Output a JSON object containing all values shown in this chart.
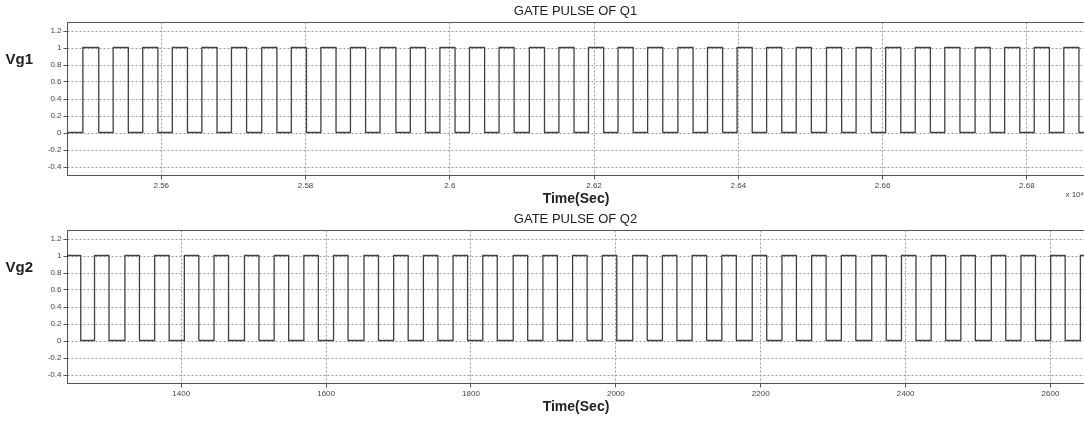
{
  "chart_data": [
    {
      "type": "step",
      "title": "GATE PULSE OF Q1",
      "xlabel": "Time(Sec)",
      "ylabel": "Vg1",
      "annotations": [
        "x 10⁴"
      ],
      "color": "#404040",
      "grid": true,
      "x": [
        2.547,
        2.5492,
        2.5514,
        2.5534,
        2.5555,
        2.5575,
        2.5596,
        2.5616,
        2.5637,
        2.5657,
        2.5678,
        2.5698,
        2.5719,
        2.574,
        2.5761,
        2.5781,
        2.5802,
        2.5822,
        2.5843,
        2.5863,
        2.5884,
        2.5904,
        2.5926,
        2.5946,
        2.5967,
        2.5987,
        2.6008,
        2.6028,
        2.6049,
        2.6069,
        2.609,
        2.6111,
        2.6132,
        2.6152,
        2.6173,
        2.6193,
        2.6214,
        2.6234,
        2.6255,
        2.6275,
        2.6296,
        2.6317,
        2.6338,
        2.6358,
        2.6379,
        2.6399,
        2.642,
        2.644,
        2.6461,
        2.6481,
        2.6502,
        2.6523,
        2.6544,
        2.6564,
        2.6585,
        2.6605,
        2.6626,
        2.6646,
        2.6667,
        2.6687,
        2.6708,
        2.6729,
        2.675,
        2.677,
        2.6791,
        2.6811,
        2.6832,
        2.6852,
        2.6873,
        2.688
      ],
      "values": [
        0,
        1,
        0,
        1,
        0,
        1,
        0,
        1,
        0,
        1,
        0,
        1,
        0,
        1,
        0,
        1,
        0,
        1,
        0,
        1,
        0,
        1,
        0,
        1,
        0,
        1,
        0,
        1,
        0,
        1,
        0,
        1,
        0,
        1,
        0,
        1,
        0,
        1,
        0,
        1,
        0,
        1,
        0,
        1,
        0,
        1,
        0,
        1,
        0,
        1,
        0,
        1,
        0,
        1,
        0,
        1,
        0,
        1,
        0,
        1,
        0,
        1,
        0,
        1,
        0,
        1,
        0,
        1,
        0,
        0
      ],
      "xlim": [
        2.547,
        2.688
      ],
      "xticks": [
        2.56,
        2.58,
        2.6,
        2.62,
        2.64,
        2.66,
        2.68
      ],
      "ylim": [
        -0.5,
        1.3
      ],
      "yticks": [
        -0.4,
        -0.2,
        0,
        0.2,
        0.4,
        0.6,
        0.8,
        1,
        1.2
      ]
    },
    {
      "type": "step",
      "title": "GATE PULSE OF Q2",
      "xlabel": "Time(Sec)",
      "ylabel": "Vg2",
      "color": "#404040",
      "grid": true,
      "x": [
        1243,
        1262,
        1281,
        1301,
        1323,
        1343,
        1364,
        1384,
        1405,
        1425,
        1446,
        1466,
        1488,
        1508,
        1529,
        1549,
        1570,
        1590,
        1611,
        1631,
        1653,
        1673,
        1694,
        1714,
        1735,
        1755,
        1776,
        1796,
        1817,
        1837,
        1859,
        1879,
        1900,
        1920,
        1941,
        1961,
        1982,
        2002,
        2024,
        2044,
        2065,
        2085,
        2106,
        2126,
        2147,
        2167,
        2189,
        2209,
        2230,
        2250,
        2271,
        2291,
        2312,
        2332,
        2354,
        2374,
        2395,
        2415,
        2436,
        2456,
        2477,
        2497,
        2519,
        2539,
        2560,
        2580,
        2601,
        2621,
        2642,
        2647
      ],
      "values": [
        1,
        0,
        1,
        0,
        1,
        0,
        1,
        0,
        1,
        0,
        1,
        0,
        1,
        0,
        1,
        0,
        1,
        0,
        1,
        0,
        1,
        0,
        1,
        0,
        1,
        0,
        1,
        0,
        1,
        0,
        1,
        0,
        1,
        0,
        1,
        0,
        1,
        0,
        1,
        0,
        1,
        0,
        1,
        0,
        1,
        0,
        1,
        0,
        1,
        0,
        1,
        0,
        1,
        0,
        1,
        0,
        1,
        0,
        1,
        0,
        1,
        0,
        1,
        0,
        1,
        0,
        1,
        0,
        1,
        1
      ],
      "xlim": [
        1243,
        2647
      ],
      "xticks": [
        1400,
        1600,
        1800,
        2000,
        2200,
        2400,
        2600
      ],
      "ylim": [
        -0.5,
        1.3
      ],
      "yticks": [
        -0.4,
        -0.2,
        0,
        0.2,
        0.4,
        0.6,
        0.8,
        1,
        1.2
      ]
    }
  ]
}
